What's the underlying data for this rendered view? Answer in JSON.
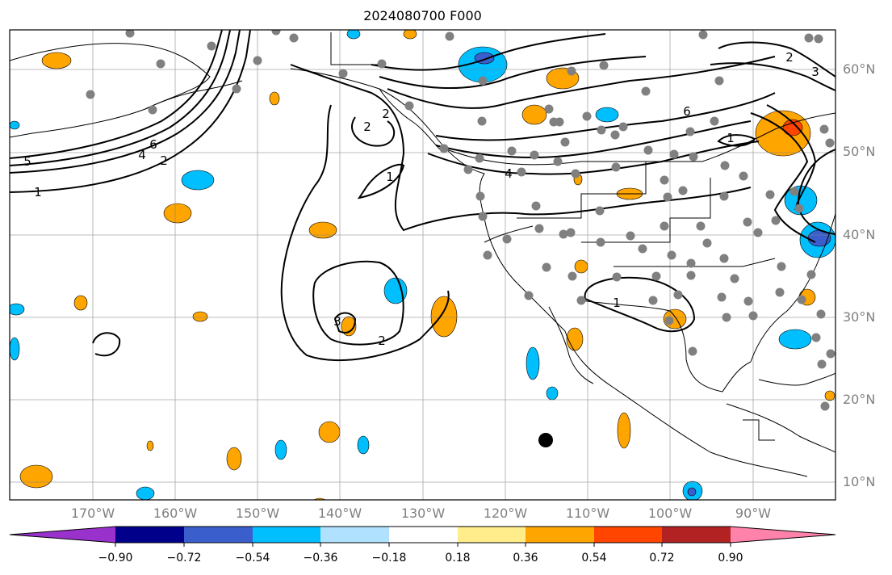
{
  "title": "2024080700 F000",
  "map": {
    "projection": "cylindrical",
    "lon_range": [
      -180,
      -80
    ],
    "lat_range": [
      8,
      65
    ],
    "gridlines": true,
    "lat_labels": [
      "60°N",
      "50°N",
      "40°N",
      "30°N",
      "20°N",
      "10°N"
    ],
    "lon_labels": [
      "170°W",
      "160°W",
      "150°W",
      "140°W",
      "130°W",
      "120°W",
      "110°W",
      "100°W",
      "90°W"
    ],
    "contour_labels": [
      "5",
      "6",
      "4",
      "2",
      "1",
      "2",
      "1",
      "3",
      "2",
      "2",
      "4",
      "6",
      "1",
      "1",
      "2",
      "3"
    ],
    "station_marker_color": "#808080",
    "highlight_marker_color": "#000000"
  },
  "colorbar": {
    "ticks": [
      "−0.90",
      "−0.72",
      "−0.54",
      "−0.36",
      "−0.18",
      "0.18",
      "0.36",
      "0.54",
      "0.72",
      "0.90"
    ],
    "colors": [
      "#9932cc",
      "#00008b",
      "#3a5fcd",
      "#00bfff",
      "#b0e2ff",
      "#ffffff",
      "#ffec8b",
      "#ffa500",
      "#ff4500",
      "#b22222",
      "#ff82ab"
    ],
    "extend": "both"
  },
  "chart_data": {
    "type": "map",
    "variable_levels": [
      -0.9,
      -0.72,
      -0.54,
      -0.36,
      -0.18,
      0.18,
      0.36,
      0.54,
      0.72,
      0.9
    ],
    "highlight_point": {
      "lon": -115,
      "lat": 15
    }
  }
}
